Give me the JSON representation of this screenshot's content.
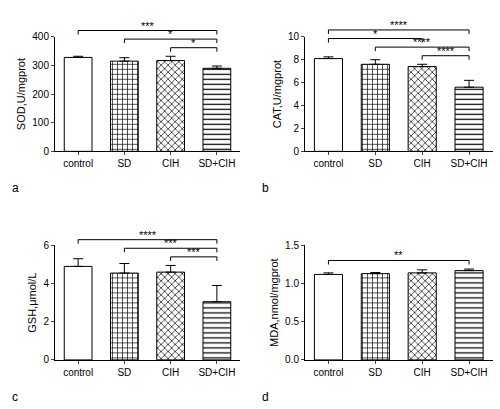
{
  "chart_data": [
    {
      "type": "bar",
      "panel_label": "a",
      "ylabel": "SOD,U/mgprot",
      "categories": [
        "control",
        "SD",
        "CIH",
        "SD+CIH"
      ],
      "values": [
        328,
        315,
        317,
        290
      ],
      "errors": [
        4,
        12,
        15,
        8
      ],
      "color": "#ffffff",
      "grid": false,
      "ylim": [
        0,
        400
      ],
      "yticks": [
        0,
        100,
        200,
        300,
        400
      ],
      "comparisons": [
        {
          "from": "control",
          "to": "SD+CIH",
          "label": "***"
        },
        {
          "from": "SD",
          "to": "SD+CIH",
          "label": "*"
        },
        {
          "from": "CIH",
          "to": "SD+CIH",
          "label": "*"
        }
      ]
    },
    {
      "type": "bar",
      "panel_label": "b",
      "ylabel": "CAT,U/mgprot",
      "categories": [
        "control",
        "SD",
        "CIH",
        "SD+CIH"
      ],
      "values": [
        8.1,
        7.6,
        7.4,
        5.6
      ],
      "errors": [
        0.15,
        0.4,
        0.2,
        0.6
      ],
      "color": "#ffffff",
      "grid": false,
      "ylim": [
        0,
        10
      ],
      "yticks": [
        0,
        2,
        4,
        6,
        8,
        10
      ],
      "comparisons": [
        {
          "from": "control",
          "to": "SD+CIH",
          "label": "****"
        },
        {
          "from": "SD",
          "to": "SD+CIH",
          "label": "****"
        },
        {
          "from": "control",
          "to": "CIH",
          "label": "*"
        },
        {
          "from": "CIH",
          "to": "SD+CIH",
          "label": "****"
        }
      ]
    },
    {
      "type": "bar",
      "panel_label": "c",
      "ylabel": "GSH,μmol/L",
      "categories": [
        "control",
        "SD",
        "CIH",
        "SD+CIH"
      ],
      "values": [
        4.9,
        4.55,
        4.6,
        3.05
      ],
      "errors": [
        0.4,
        0.5,
        0.35,
        0.85
      ],
      "color": "#ffffff",
      "grid": false,
      "ylim": [
        0,
        6
      ],
      "yticks": [
        0,
        2,
        4,
        6
      ],
      "comparisons": [
        {
          "from": "control",
          "to": "SD+CIH",
          "label": "****"
        },
        {
          "from": "SD",
          "to": "SD+CIH",
          "label": "***"
        },
        {
          "from": "CIH",
          "to": "SD+CIH",
          "label": "***"
        }
      ]
    },
    {
      "type": "bar",
      "panel_label": "d",
      "ylabel": "MDA,nmol/mgprot",
      "categories": [
        "control",
        "SD",
        "CIH",
        "SD+CIH"
      ],
      "values": [
        1.12,
        1.13,
        1.14,
        1.17
      ],
      "errors": [
        0.02,
        0.015,
        0.04,
        0.02
      ],
      "color": "#ffffff",
      "grid": false,
      "ylim": [
        0,
        1.5
      ],
      "yticks": [
        {
          "value": 0,
          "label": "0.0"
        },
        0.5,
        {
          "value": 1,
          "label": "1.0"
        },
        1.5
      ],
      "comparisons": [
        {
          "from": "control",
          "to": "SD+CIH",
          "label": "**"
        }
      ]
    }
  ]
}
